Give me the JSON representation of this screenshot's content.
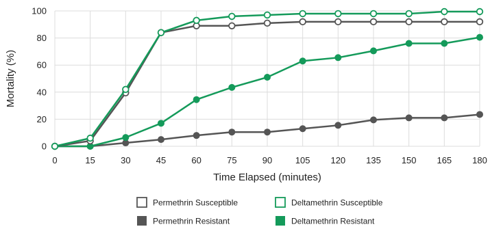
{
  "chart_data": {
    "type": "line",
    "xlabel": "Time Elapsed (minutes)",
    "ylabel": "Mortality (%)",
    "x": [
      0,
      15,
      30,
      45,
      60,
      75,
      90,
      105,
      120,
      135,
      150,
      165,
      180
    ],
    "xlim": [
      0,
      180
    ],
    "ylim": [
      0,
      100
    ],
    "xticks": [
      "0",
      "15",
      "30",
      "45",
      "60",
      "75",
      "90",
      "105",
      "120",
      "135",
      "150",
      "165",
      "180"
    ],
    "yticks": [
      "0",
      "20",
      "40",
      "60",
      "80",
      "100"
    ],
    "grid": true,
    "legend_position": "bottom",
    "series": [
      {
        "name": "Permethrin Susceptible",
        "color": "#555555",
        "marker": "open-circle",
        "values": [
          0,
          4,
          39.5,
          84,
          89,
          89,
          91,
          92,
          92,
          92,
          92,
          92,
          92
        ]
      },
      {
        "name": "Deltamethrin Susceptible",
        "color": "#149a5a",
        "marker": "open-circle",
        "values": [
          0,
          6,
          42,
          84,
          93,
          96,
          97,
          98,
          98,
          98,
          98,
          99.5,
          99.5
        ]
      },
      {
        "name": "Permethrin Resistant",
        "color": "#555555",
        "marker": "filled-circle",
        "values": [
          0,
          0,
          2.5,
          5,
          8,
          10.5,
          10.5,
          13,
          15.5,
          19.5,
          21,
          21,
          23.5
        ]
      },
      {
        "name": "Deltamethrin Resistant",
        "color": "#149a5a",
        "marker": "filled-circle",
        "values": [
          0,
          0,
          6.5,
          17,
          34.5,
          43.5,
          51,
          63,
          65.5,
          70.5,
          76,
          76,
          80.5
        ]
      }
    ],
    "legend": [
      {
        "label": "Permethrin Susceptible",
        "color": "#555555",
        "style": "open-square"
      },
      {
        "label": "Deltamethrin Susceptible",
        "color": "#149a5a",
        "style": "open-square"
      },
      {
        "label": "Permethrin Resistant",
        "color": "#555555",
        "style": "filled-square"
      },
      {
        "label": "Deltamethrin Resistant",
        "color": "#149a5a",
        "style": "filled-square"
      }
    ]
  }
}
